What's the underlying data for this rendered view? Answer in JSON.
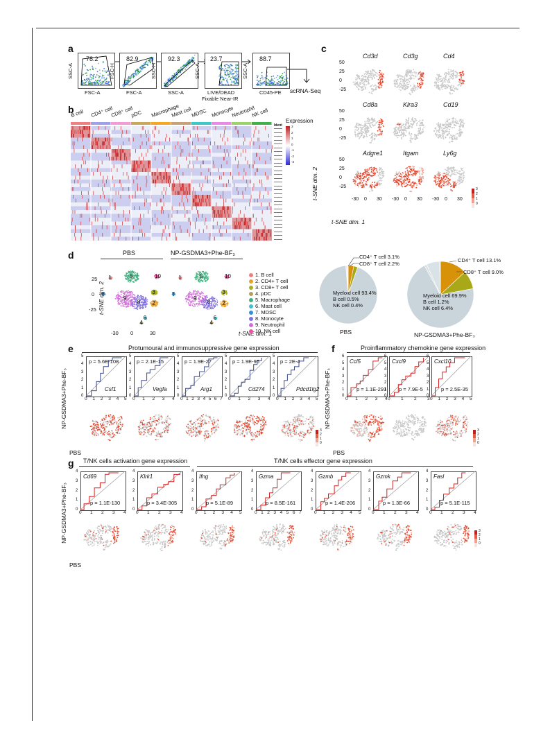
{
  "panel_labels": {
    "a": "a",
    "b": "b",
    "c": "c",
    "d": "d",
    "e": "e",
    "f": "f",
    "g": "g"
  },
  "a": {
    "gates": [
      {
        "value": "78.2",
        "x": "FSC-A",
        "y": "SSC-A"
      },
      {
        "value": "82.9",
        "x": "FSC-A",
        "y": "FSC-H"
      },
      {
        "value": "92.3",
        "x": "SSC-A",
        "y": "SSC-H"
      },
      {
        "value": "23.7",
        "x": "LIVE/DEAD Fixable Near-IR",
        "x1": "LIVE/DEAD",
        "x2": "Fixable Near-IR",
        "y": "SSC-A"
      },
      {
        "value": "88.7",
        "x": "CD45-PE",
        "y": "SSC-A"
      }
    ],
    "output": "scRNA-Seq"
  },
  "b": {
    "clusters": [
      "B cell",
      "CD4⁺ cell",
      "CD8⁺ cell",
      "pDC",
      "Macrophage",
      "Mast cell",
      "MDSC",
      "Monocyte",
      "Neutrophil",
      "NK cell"
    ],
    "cluster_colors": [
      "#f08080",
      "#a0a0e8",
      "#f29bd6",
      "#c8a85a",
      "#f5a623",
      "#c8a07a",
      "#3ec7c9",
      "#e889e8",
      "#9bd36b",
      "#40b04a"
    ],
    "legend_title": "Expression",
    "legend_ticks": [
      "3",
      "2",
      "1",
      "0",
      "-1",
      "-2",
      "-3"
    ],
    "ident_label": "Ident"
  },
  "c": {
    "genes": [
      "Cd3d",
      "Cd3g",
      "Cd4",
      "Cd8a",
      "Klra3",
      "Cd19",
      "Adgre1",
      "Itgam",
      "Ly6g"
    ],
    "yticks": [
      "50",
      "25",
      "0",
      "-25"
    ],
    "xticks": [
      "-30",
      "0",
      "30"
    ],
    "ylabel": "t-SNE dim. 2",
    "xlabel": "t-SNE dim. 1",
    "scale": [
      "3",
      "2",
      "1",
      "0"
    ]
  },
  "d": {
    "titles": [
      "PBS",
      "NP-GSDMA3+Phe-BF₃"
    ],
    "ylabel": "t-SNE dim. 2",
    "xlabel": "t-SNE dim. 1",
    "yticks": [
      "25",
      "0",
      "-25"
    ],
    "xticks": [
      "-30",
      "0",
      "30"
    ],
    "legend": [
      "1. B cell",
      "2. CD4+ T cell",
      "3. CD8+ T cell",
      "4. pDC",
      "5. Macrophage",
      "6. Mast cell",
      "7. MDSC",
      "8. Monocyte",
      "9. Neutrophil",
      "10. NK cell"
    ],
    "legend_colors": [
      "#f08080",
      "#e8a030",
      "#a8b020",
      "#b0a060",
      "#40b080",
      "#40c0d0",
      "#3090d0",
      "#8070e0",
      "#d070d8",
      "#f050a0"
    ],
    "cluster_nums": [
      "1",
      "2",
      "3",
      "4",
      "5",
      "6",
      "7",
      "8",
      "9",
      "10"
    ],
    "pie_pbs": {
      "label": "PBS",
      "lines": [
        "Myeloid cell 93.4%",
        "B cell 0.5%",
        "NK cell 0.4%"
      ],
      "callouts": [
        "CD4⁺ T cell 3.1%",
        "CD8⁺ T cell 2.2%"
      ]
    },
    "pie_np": {
      "label": "NP-GSDMA3+Phe-BF₃",
      "lines": [
        "Myeloid cell 69.9%",
        "B cell 1.2%",
        "NK cell 6.4%"
      ],
      "callouts": [
        "CD4⁺ T cell 13.1%",
        "CD8⁺ T cell 9.0%"
      ]
    },
    "pie_colors": {
      "myeloid": "#c9d5db",
      "cd4": "#d8920a",
      "cd8": "#a8a818",
      "other": "#e0e0e0"
    }
  },
  "e": {
    "title": "Protumoural and immunosuppressive gene expression",
    "plots": [
      {
        "gene": "Csf1",
        "p": "p = 5.6E-108",
        "xticks": [
          "0",
          "1",
          "2",
          "3",
          "4",
          "5"
        ]
      },
      {
        "gene": "Vegfa",
        "p": "p = 2.1E-15",
        "xticks": [
          "0",
          "1",
          "2",
          "3",
          "4"
        ]
      },
      {
        "gene": "Arg1",
        "p": "p = 1.9E-27",
        "xticks": [
          "0",
          "1",
          "2",
          "3",
          "4",
          "5",
          "6",
          "7"
        ]
      },
      {
        "gene": "Cd274",
        "p": "p = 1.9E-95",
        "xticks": [
          "0",
          "1",
          "2",
          "3",
          "4"
        ]
      },
      {
        "gene": "Pdcd1lg2",
        "p": "p = 2E-4",
        "xticks": [
          "0",
          "1",
          "2",
          "3",
          "4",
          "5"
        ]
      }
    ],
    "ylabel": "NP-GSDMA3+Phe-BF₃",
    "xlabel": "PBS",
    "scale": [
      "3",
      "2",
      "1",
      "0"
    ]
  },
  "f": {
    "title": "Proinflammatory chemokine gene expression",
    "plots": [
      {
        "gene": "Ccl5",
        "p": "p = 1.1E-291",
        "xticks": [
          "0",
          "1",
          "2",
          "3",
          "4"
        ]
      },
      {
        "gene": "Cxcl9",
        "p": "p = 7.9E-5",
        "xticks": [
          "0",
          "1",
          "2",
          "3"
        ]
      },
      {
        "gene": "Cxcl10",
        "p": "p = 2.5E-35",
        "xticks": [
          "0",
          "1",
          "2",
          "3",
          "4",
          "5"
        ]
      }
    ],
    "ylabel": "NP-GSDMA3+Phe-BF₃",
    "xlabel": "PBS",
    "scale": [
      "3",
      "2",
      "1",
      "0"
    ]
  },
  "g": {
    "title_left": "T/NK cells activation gene expression",
    "title_right": "T/NK cells effector gene expression",
    "plots": [
      {
        "gene": "Cd69",
        "p": "p = 1.1E-130",
        "xticks": [
          "0",
          "1",
          "2",
          "3",
          "4"
        ]
      },
      {
        "gene": "Klrk1",
        "p": "p = 3.4E-305",
        "xticks": [
          "0",
          "1",
          "2",
          "3",
          "4"
        ]
      },
      {
        "gene": "Ifng",
        "p": "p = 5.1E-89",
        "xticks": [
          "0",
          "1",
          "2",
          "3",
          "4",
          "5"
        ]
      },
      {
        "gene": "Gzma",
        "p": "p = 8.5E-161",
        "xticks": [
          "0",
          "1",
          "2",
          "3",
          "4",
          "5",
          "6",
          "7"
        ]
      },
      {
        "gene": "Gzmb",
        "p": "p = 1.4E-206",
        "xticks": [
          "0",
          "1",
          "2",
          "3",
          "4",
          "5"
        ]
      },
      {
        "gene": "Gzmk",
        "p": "p = 1.3E-66",
        "xticks": [
          "0",
          "1",
          "2",
          "3",
          "4"
        ]
      },
      {
        "gene": "Fasl",
        "p": "p = 5.1E-115",
        "xticks": [
          "0",
          "1",
          "2",
          "3",
          "4"
        ]
      }
    ],
    "ylabel": "NP-GSDMA3+Phe-BF₃",
    "xlabel": "PBS",
    "scale": [
      "3",
      "2",
      "1",
      "0"
    ]
  }
}
